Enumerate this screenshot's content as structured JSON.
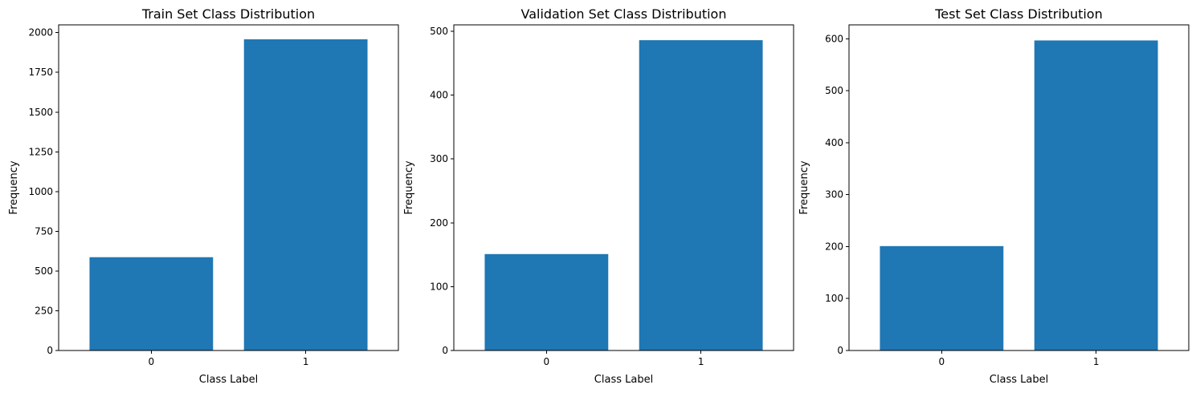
{
  "colors": {
    "bar": "#1f77b4",
    "axis": "#000000",
    "background": "#ffffff"
  },
  "chart_data": [
    {
      "type": "bar",
      "title": "Train Set Class Distribution",
      "xlabel": "Class Label",
      "ylabel": "Frequency",
      "categories": [
        "0",
        "1"
      ],
      "values": [
        587,
        1958
      ],
      "ylim": [
        0,
        2049
      ],
      "yticks": [
        0,
        250,
        500,
        750,
        1000,
        1250,
        1500,
        1750,
        2000
      ],
      "grid": false,
      "legend": "none"
    },
    {
      "type": "bar",
      "title": "Validation Set Class Distribution",
      "xlabel": "Class Label",
      "ylabel": "Frequency",
      "categories": [
        "0",
        "1"
      ],
      "values": [
        151,
        486
      ],
      "ylim": [
        0,
        510
      ],
      "yticks": [
        0,
        100,
        200,
        300,
        400,
        500
      ],
      "grid": false,
      "legend": "none"
    },
    {
      "type": "bar",
      "title": "Test Set Class Distribution",
      "xlabel": "Class Label",
      "ylabel": "Frequency",
      "categories": [
        "0",
        "1"
      ],
      "values": [
        201,
        597
      ],
      "ylim": [
        0,
        627
      ],
      "yticks": [
        0,
        100,
        200,
        300,
        400,
        500,
        600
      ],
      "grid": false,
      "legend": "none"
    }
  ]
}
